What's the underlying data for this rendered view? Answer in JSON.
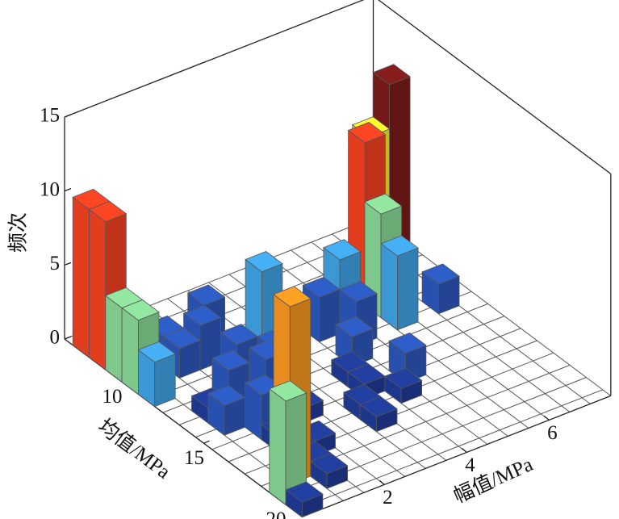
{
  "chart_data": {
    "type": "bar3d",
    "xlabel": "均值/MPa",
    "ylabel": "幅值/MPa",
    "zlabel": "频次",
    "xlim": [
      6.5,
      21
    ],
    "xticks": [
      10,
      15,
      20
    ],
    "ylim": [
      0,
      7.5
    ],
    "yticks": [
      2,
      4,
      6
    ],
    "zlim": [
      0,
      15
    ],
    "zticks": [
      0,
      5,
      10,
      15
    ],
    "grid": true,
    "bars": [
      {
        "mean": 7,
        "amplitude": 0,
        "value": 10,
        "color": "#ee4021"
      },
      {
        "mean": 8,
        "amplitude": 0,
        "value": 10,
        "color": "#ee4021"
      },
      {
        "mean": 9,
        "amplitude": 0,
        "value": 5,
        "color": "#86d392"
      },
      {
        "mean": 10,
        "amplitude": 0,
        "value": 5,
        "color": "#86d392"
      },
      {
        "mean": 11,
        "amplitude": 0,
        "value": 3,
        "color": "#3fa0e0"
      },
      {
        "mean": 9,
        "amplitude": 1,
        "value": 2,
        "color": "#2a55b8"
      },
      {
        "mean": 10,
        "amplitude": 1,
        "value": 2,
        "color": "#2a55b8"
      },
      {
        "mean": 10,
        "amplitude": 1.5,
        "value": 3,
        "color": "#2a55b8"
      },
      {
        "mean": 9,
        "amplitude": 2,
        "value": 3,
        "color": "#2a55b8"
      },
      {
        "mean": 10,
        "amplitude": 3,
        "value": 5,
        "color": "#3fa0e0"
      },
      {
        "mean": 11,
        "amplitude": 2,
        "value": 2,
        "color": "#2a55b8"
      },
      {
        "mean": 12,
        "amplitude": 1.5,
        "value": 1,
        "color": "#1f3a93"
      },
      {
        "mean": 12,
        "amplitude": 2.5,
        "value": 2,
        "color": "#2a55b8"
      },
      {
        "mean": 13,
        "amplitude": 1,
        "value": 3,
        "color": "#2a55b8"
      },
      {
        "mean": 13,
        "amplitude": 0.5,
        "value": 1,
        "color": "#1f3a93"
      },
      {
        "mean": 14,
        "amplitude": 1.5,
        "value": 4,
        "color": "#2a55b8"
      },
      {
        "mean": 14,
        "amplitude": 0.5,
        "value": 2,
        "color": "#2a55b8"
      },
      {
        "mean": 15,
        "amplitude": 1,
        "value": 3,
        "color": "#2a55b8"
      },
      {
        "mean": 15,
        "amplitude": 2,
        "value": 1,
        "color": "#1f3a93"
      },
      {
        "mean": 11,
        "amplitude": 4,
        "value": 3,
        "color": "#2a55b8"
      },
      {
        "mean": 12,
        "amplitude": 4.5,
        "value": 3,
        "color": "#2a55b8"
      },
      {
        "mean": 13,
        "amplitude": 4,
        "value": 2,
        "color": "#2a55b8"
      },
      {
        "mean": 14,
        "amplitude": 3.5,
        "value": 1,
        "color": "#1f3a93"
      },
      {
        "mean": 15,
        "amplitude": 3.5,
        "value": 1,
        "color": "#1f3a93"
      },
      {
        "mean": 15,
        "amplitude": 4.5,
        "value": 2,
        "color": "#2a55b8"
      },
      {
        "mean": 16,
        "amplitude": 3,
        "value": 1,
        "color": "#1f3a93"
      },
      {
        "mean": 16,
        "amplitude": 4,
        "value": 1,
        "color": "#1f3a93"
      },
      {
        "mean": 17,
        "amplitude": 3,
        "value": 1,
        "color": "#1f3a93"
      },
      {
        "mean": 16,
        "amplitude": 1,
        "value": 1,
        "color": "#1f3a93"
      },
      {
        "mean": 17,
        "amplitude": 1.5,
        "value": 1,
        "color": "#1f3a93"
      },
      {
        "mean": 18,
        "amplitude": 1,
        "value": 1,
        "color": "#1f3a93"
      },
      {
        "mean": 19,
        "amplitude": 1,
        "value": 1,
        "color": "#1f3a93"
      },
      {
        "mean": 20,
        "amplitude": 0,
        "value": 1,
        "color": "#1f3a93"
      },
      {
        "mean": 18,
        "amplitude": 0.5,
        "value": 12,
        "color": "#f39321"
      },
      {
        "mean": 19,
        "amplitude": 0,
        "value": 7,
        "color": "#86d392"
      },
      {
        "mean": 9,
        "amplitude": 6.5,
        "value": 13,
        "color": "#7b1a1a"
      },
      {
        "mean": 9,
        "amplitude": 6,
        "value": 10,
        "color": "#f7e82c"
      },
      {
        "mean": 10,
        "amplitude": 5.5,
        "value": 11,
        "color": "#ee4021"
      },
      {
        "mean": 11,
        "amplitude": 5.5,
        "value": 7,
        "color": "#86d392"
      },
      {
        "mean": 11,
        "amplitude": 4.5,
        "value": 5,
        "color": "#3fa0e0"
      },
      {
        "mean": 12,
        "amplitude": 5.5,
        "value": 5,
        "color": "#3fa0e0"
      },
      {
        "mean": 12,
        "amplitude": 6.5,
        "value": 2,
        "color": "#2a55b8"
      }
    ]
  }
}
